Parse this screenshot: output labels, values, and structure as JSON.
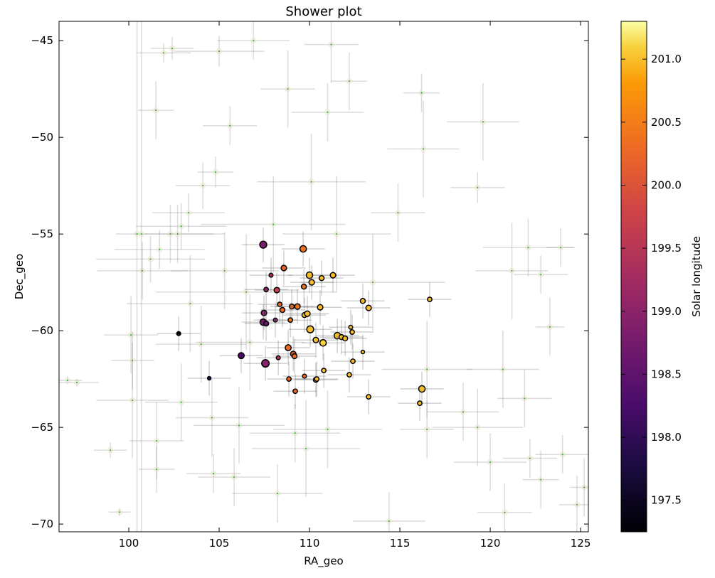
{
  "chart_data": {
    "type": "scatter",
    "title": "Shower plot",
    "xlabel": "RA_geo",
    "ylabel": "Dec_geo",
    "xlim": [
      96.14,
      125.43
    ],
    "ylim": [
      -70.4,
      -44.0
    ],
    "xticks": [
      100,
      105,
      110,
      115,
      120,
      125
    ],
    "yticks": [
      -45,
      -50,
      -55,
      -60,
      -65,
      -70
    ],
    "grid": false,
    "colorbar": {
      "label": "Solar longitude",
      "range": [
        197.25,
        201.3
      ],
      "ticks": [
        197.5,
        198.0,
        198.5,
        199.0,
        199.5,
        200.0,
        200.5,
        201.0
      ],
      "colormap": "inferno"
    },
    "background_points_note_columns": [
      "ra",
      "dec",
      "ra_err",
      "dec_err"
    ],
    "background_points": [
      [
        97.13,
        -62.68,
        1.2,
        0.2
      ],
      [
        96.61,
        -62.57,
        0.8,
        0.2
      ],
      [
        98.98,
        -66.18,
        0.9,
        0.4
      ],
      [
        99.49,
        -69.38,
        0.6,
        0.2
      ],
      [
        100.12,
        -60.22,
        1.5,
        2.0
      ],
      [
        100.2,
        -61.54,
        1.2,
        1.5
      ],
      [
        100.2,
        -63.6,
        2.0,
        3.0
      ],
      [
        101.54,
        -65.7,
        1.5,
        2.0
      ],
      [
        101.54,
        -67.17,
        1.0,
        1.2
      ],
      [
        101.93,
        -45.63,
        1.5,
        0.5
      ],
      [
        102.4,
        -45.4,
        1.2,
        0.6
      ],
      [
        101.5,
        -48.6,
        1.0,
        1.5
      ],
      [
        104.69,
        -67.39,
        1.5,
        1.0
      ],
      [
        105.83,
        -67.57,
        2.0,
        1.5
      ],
      [
        108.23,
        -68.42,
        2.5,
        1.5
      ],
      [
        100.75,
        -56.9,
        2.5,
        1.5
      ],
      [
        101.2,
        -56.3,
        3.0,
        1.2
      ],
      [
        101.7,
        -55.8,
        2.5,
        1.0
      ],
      [
        102.3,
        -55.0,
        3.0,
        1.5
      ],
      [
        102.9,
        -54.6,
        2.5,
        1.2
      ],
      [
        103.3,
        -53.9,
        2.0,
        1.0
      ],
      [
        104.1,
        -52.5,
        1.5,
        1.2
      ],
      [
        104.8,
        -51.8,
        1.0,
        0.8
      ],
      [
        105.6,
        -49.4,
        1.5,
        1.0
      ],
      [
        106.9,
        -45.0,
        2.0,
        1.0
      ],
      [
        105.0,
        -45.55,
        2.5,
        0.8
      ],
      [
        108.8,
        -47.5,
        1.5,
        2.0
      ],
      [
        111.0,
        -48.7,
        2.0,
        1.5
      ],
      [
        112.2,
        -47.1,
        1.0,
        1.5
      ],
      [
        111.2,
        -45.2,
        1.5,
        2.0
      ],
      [
        110.1,
        -52.3,
        3.0,
        2.5
      ],
      [
        116.2,
        -47.7,
        1.0,
        1.0
      ],
      [
        119.6,
        -49.2,
        2.0,
        2.0
      ],
      [
        116.3,
        -50.6,
        2.0,
        2.5
      ],
      [
        119.3,
        -52.6,
        1.5,
        0.8
      ],
      [
        114.9,
        -53.9,
        1.5,
        1.5
      ],
      [
        122.1,
        -55.7,
        2.5,
        1.5
      ],
      [
        123.9,
        -55.7,
        0.8,
        1.0
      ],
      [
        121.2,
        -56.9,
        2.0,
        2.5
      ],
      [
        122.8,
        -57.1,
        1.5,
        1.0
      ],
      [
        123.3,
        -59.8,
        0.8,
        1.5
      ],
      [
        120.7,
        -62.0,
        2.0,
        2.0
      ],
      [
        116.5,
        -62.0,
        2.5,
        2.5
      ],
      [
        121.9,
        -63.5,
        1.5,
        1.5
      ],
      [
        118.5,
        -64.2,
        2.0,
        1.5
      ],
      [
        122.2,
        -66.6,
        1.5,
        1.0
      ],
      [
        122.8,
        -67.7,
        1.0,
        1.5
      ],
      [
        124.0,
        -66.4,
        1.5,
        1.0
      ],
      [
        124.8,
        -69.0,
        1.0,
        1.5
      ],
      [
        125.2,
        -68.1,
        0.8,
        1.5
      ],
      [
        119.3,
        -65.0,
        2.5,
        2.0
      ],
      [
        116.5,
        -65.1,
        1.5,
        1.5
      ],
      [
        120.0,
        -66.8,
        2.0,
        1.5
      ],
      [
        120.8,
        -69.4,
        1.5,
        1.5
      ],
      [
        114.4,
        -69.85,
        2.0,
        1.5
      ],
      [
        109.8,
        -66.1,
        3.0,
        2.5
      ],
      [
        109.2,
        -65.3,
        2.5,
        1.5
      ],
      [
        111.0,
        -65.1,
        3.0,
        2.0
      ],
      [
        102.7,
        -55.0,
        2.0,
        1.5
      ],
      [
        103.4,
        -58.6,
        3.5,
        2.5
      ],
      [
        104.0,
        -60.7,
        2.5,
        2.0
      ],
      [
        105.3,
        -56.9,
        3.0,
        2.0
      ],
      [
        106.7,
        -60.6,
        3.0,
        2.5
      ],
      [
        106.1,
        -64.9,
        2.5,
        2.0
      ],
      [
        104.6,
        -64.5,
        2.0,
        2.0
      ],
      [
        102.9,
        -63.7,
        2.0,
        2.0
      ],
      [
        100.7,
        -55.0,
        0.3,
        20.0
      ],
      [
        100.45,
        -55.0,
        0.2,
        20.0
      ],
      [
        113.5,
        -57.5,
        4.0,
        2.5
      ],
      [
        111.5,
        -55.0,
        3.0,
        3.0
      ],
      [
        108.0,
        -54.5,
        4.0,
        2.5
      ],
      [
        106.5,
        -58.0,
        5.0,
        3.0
      ]
    ],
    "shower_points_columns": [
      "ra",
      "dec",
      "solar_longitude",
      "size"
    ],
    "shower_points": [
      [
        107.44,
        -55.55,
        198.8,
        1.4
      ],
      [
        109.65,
        -55.77,
        200.4,
        1.3
      ],
      [
        108.58,
        -56.76,
        200.2,
        1.1
      ],
      [
        107.87,
        -57.13,
        199.3,
        0.8
      ],
      [
        110.0,
        -57.13,
        201.0,
        1.3
      ],
      [
        110.67,
        -57.28,
        201.0,
        1.0
      ],
      [
        111.3,
        -57.13,
        201.0,
        1.1
      ],
      [
        110.12,
        -57.5,
        201.0,
        1.1
      ],
      [
        109.69,
        -57.72,
        200.4,
        1.0
      ],
      [
        107.6,
        -57.87,
        199.0,
        0.9
      ],
      [
        108.19,
        -57.9,
        199.7,
        1.1
      ],
      [
        112.95,
        -58.46,
        201.0,
        1.0
      ],
      [
        113.27,
        -58.82,
        201.0,
        1.1
      ],
      [
        108.35,
        -58.64,
        200.3,
        0.9
      ],
      [
        108.5,
        -58.93,
        200.3,
        1.0
      ],
      [
        109.02,
        -58.75,
        200.2,
        1.0
      ],
      [
        109.33,
        -58.75,
        200.4,
        1.1
      ],
      [
        110.59,
        -58.79,
        201.0,
        1.1
      ],
      [
        107.48,
        -59.08,
        198.9,
        1.1
      ],
      [
        108.11,
        -59.45,
        199.0,
        0.8
      ],
      [
        109.72,
        -59.19,
        201.0,
        1.0
      ],
      [
        109.88,
        -59.12,
        201.0,
        1.1
      ],
      [
        108.94,
        -59.45,
        200.5,
        0.9
      ],
      [
        107.44,
        -59.56,
        198.7,
        1.3
      ],
      [
        107.6,
        -59.63,
        198.6,
        1.0
      ],
      [
        110.04,
        -59.93,
        201.0,
        1.4
      ],
      [
        110.35,
        -60.48,
        201.0,
        1.1
      ],
      [
        110.75,
        -60.63,
        201.1,
        1.3
      ],
      [
        111.54,
        -60.26,
        201.0,
        1.3
      ],
      [
        111.77,
        -60.33,
        201.0,
        1.0
      ],
      [
        111.97,
        -60.4,
        201.0,
        1.0
      ],
      [
        112.28,
        -59.82,
        201.0,
        0.8
      ],
      [
        112.36,
        -60.07,
        201.0,
        0.9
      ],
      [
        112.95,
        -61.1,
        201.0,
        0.7
      ],
      [
        108.82,
        -60.88,
        200.3,
        1.2
      ],
      [
        109.1,
        -61.2,
        200.1,
        1.1
      ],
      [
        109.17,
        -61.32,
        200.3,
        1.0
      ],
      [
        108.27,
        -61.4,
        199.5,
        0.8
      ],
      [
        106.22,
        -61.29,
        198.3,
        1.2
      ],
      [
        107.56,
        -61.69,
        198.9,
        1.5
      ],
      [
        112.4,
        -61.58,
        201.0,
        0.9
      ],
      [
        110.79,
        -62.06,
        201.0,
        0.9
      ],
      [
        112.2,
        -62.28,
        201.0,
        0.9
      ],
      [
        108.86,
        -62.5,
        200.3,
        0.9
      ],
      [
        109.72,
        -62.35,
        200.3,
        0.8
      ],
      [
        110.35,
        -62.54,
        201.0,
        1.0
      ],
      [
        110.4,
        -62.5,
        201.0,
        0.9
      ],
      [
        109.21,
        -63.13,
        200.3,
        0.9
      ],
      [
        113.27,
        -63.42,
        201.0,
        0.9
      ],
      [
        116.65,
        -58.38,
        201.0,
        0.9
      ],
      [
        116.22,
        -63.01,
        201.0,
        1.3
      ],
      [
        116.1,
        -63.75,
        201.0,
        0.9
      ],
      [
        102.76,
        -60.15,
        197.3,
        0.8
      ],
      [
        104.45,
        -62.46,
        197.9,
        0.7
      ]
    ]
  }
}
